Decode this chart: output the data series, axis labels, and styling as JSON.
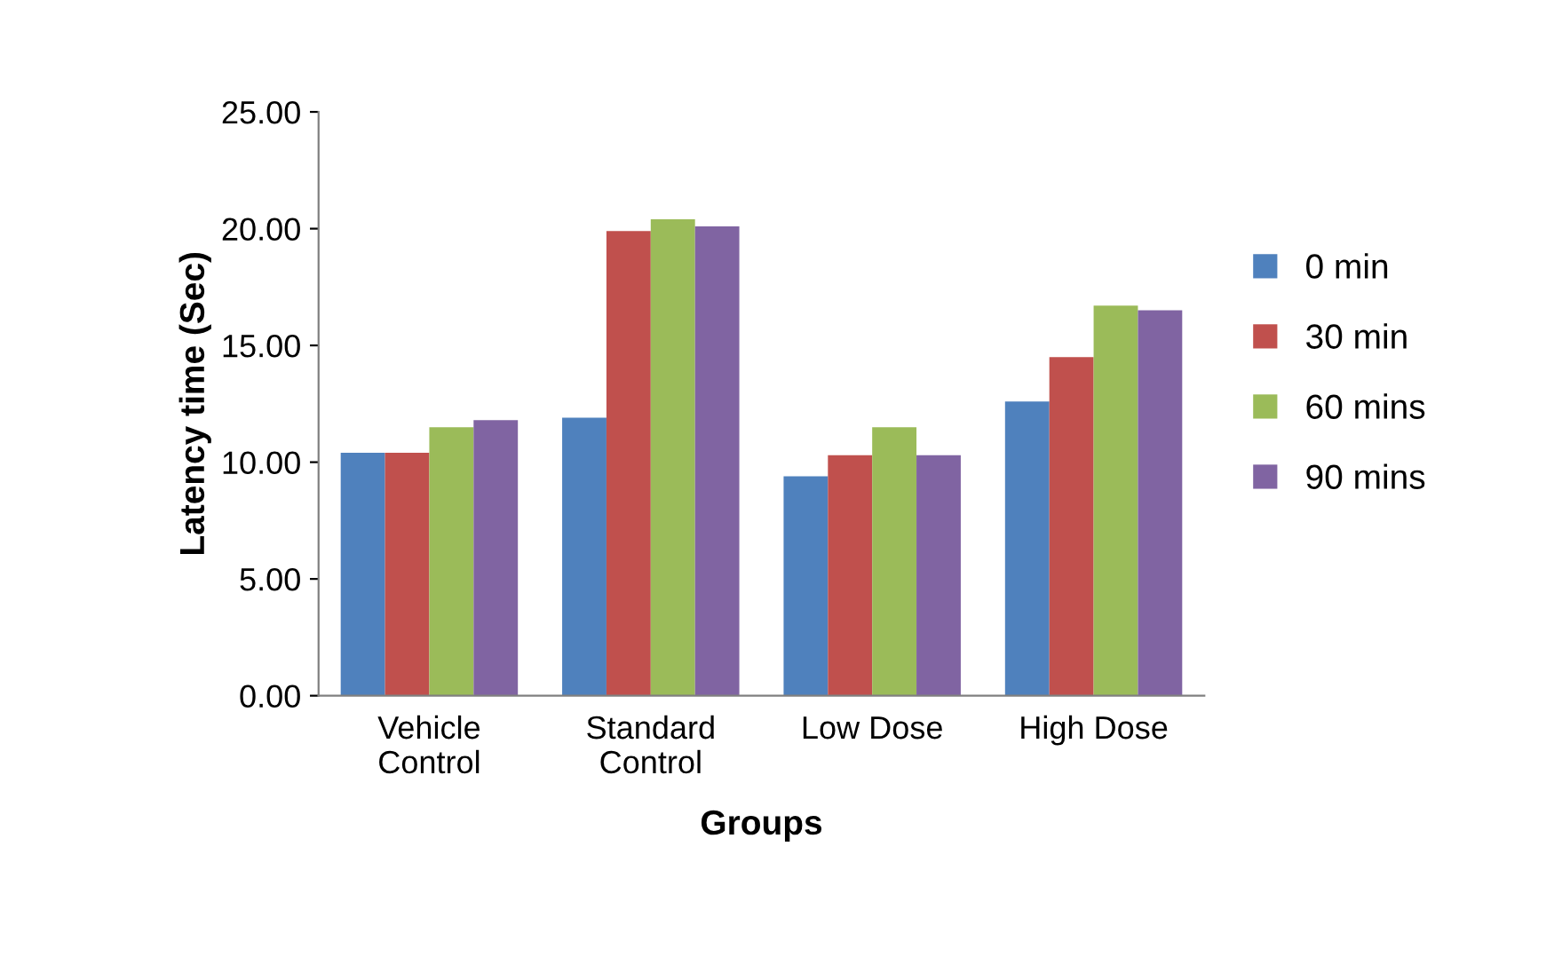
{
  "chart_data": {
    "type": "bar",
    "xlabel": "Groups",
    "ylabel": "Latency time (Sec)",
    "categories": [
      "Vehicle\nControl",
      "Standard\nControl",
      "Low Dose",
      "High Dose"
    ],
    "series": [
      {
        "name": "0 min",
        "color": "#4f81bd",
        "values": [
          10.4,
          11.9,
          9.4,
          12.6
        ]
      },
      {
        "name": "30 min",
        "color": "#c0504d",
        "values": [
          10.4,
          19.9,
          10.3,
          14.5
        ]
      },
      {
        "name": "60 mins",
        "color": "#9bbb59",
        "values": [
          11.5,
          20.4,
          11.5,
          16.7
        ]
      },
      {
        "name": "90 mins",
        "color": "#8064a2",
        "values": [
          11.8,
          20.1,
          10.3,
          16.5
        ]
      }
    ],
    "ylim": [
      0,
      25
    ],
    "yticks": [
      {
        "value": 0,
        "label": "0.00"
      },
      {
        "value": 5,
        "label": "5.00"
      },
      {
        "value": 10,
        "label": "10.00"
      },
      {
        "value": 15,
        "label": "15.00"
      },
      {
        "value": 20,
        "label": "20.00"
      },
      {
        "value": 25,
        "label": "25.00"
      }
    ],
    "grid": false,
    "legend": "right"
  }
}
